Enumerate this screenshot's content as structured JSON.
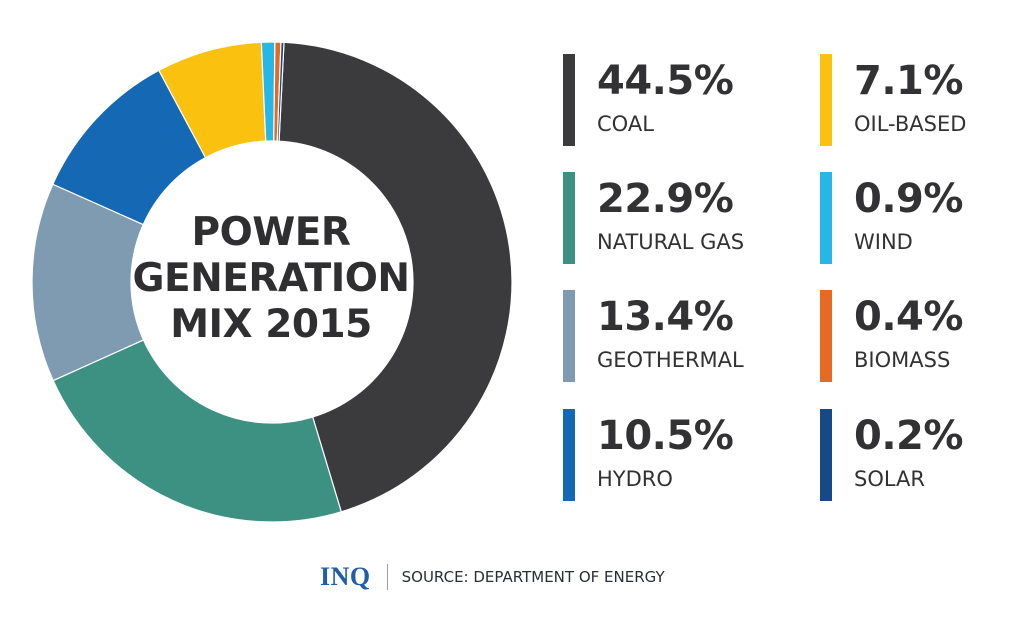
{
  "chart_data": {
    "type": "pie",
    "title_lines": [
      "POWER",
      "GENERATION",
      "MIX 2015"
    ],
    "series": [
      {
        "name": "COAL",
        "value": 44.5,
        "label": "44.5%",
        "color": "#3b3b3d"
      },
      {
        "name": "NATURAL GAS",
        "value": 22.9,
        "label": "22.9%",
        "color": "#3d9183"
      },
      {
        "name": "GEOTHERMAL",
        "value": 13.4,
        "label": "13.4%",
        "color": "#7e9bb1"
      },
      {
        "name": "HYDRO",
        "value": 10.5,
        "label": "10.5%",
        "color": "#1568b4"
      },
      {
        "name": "OIL-BASED",
        "value": 7.1,
        "label": "7.1%",
        "color": "#fac20e"
      },
      {
        "name": "WIND",
        "value": 0.9,
        "label": "0.9%",
        "color": "#27b7e6"
      },
      {
        "name": "BIOMASS",
        "value": 0.4,
        "label": "0.4%",
        "color": "#e66a23"
      },
      {
        "name": "SOLAR",
        "value": 0.2,
        "label": "0.2%",
        "color": "#164a86"
      }
    ],
    "legend": "right, two columns",
    "style": "donut"
  },
  "footer": {
    "logo": "INQ",
    "source": "SOURCE: DEPARTMENT OF ENERGY"
  }
}
